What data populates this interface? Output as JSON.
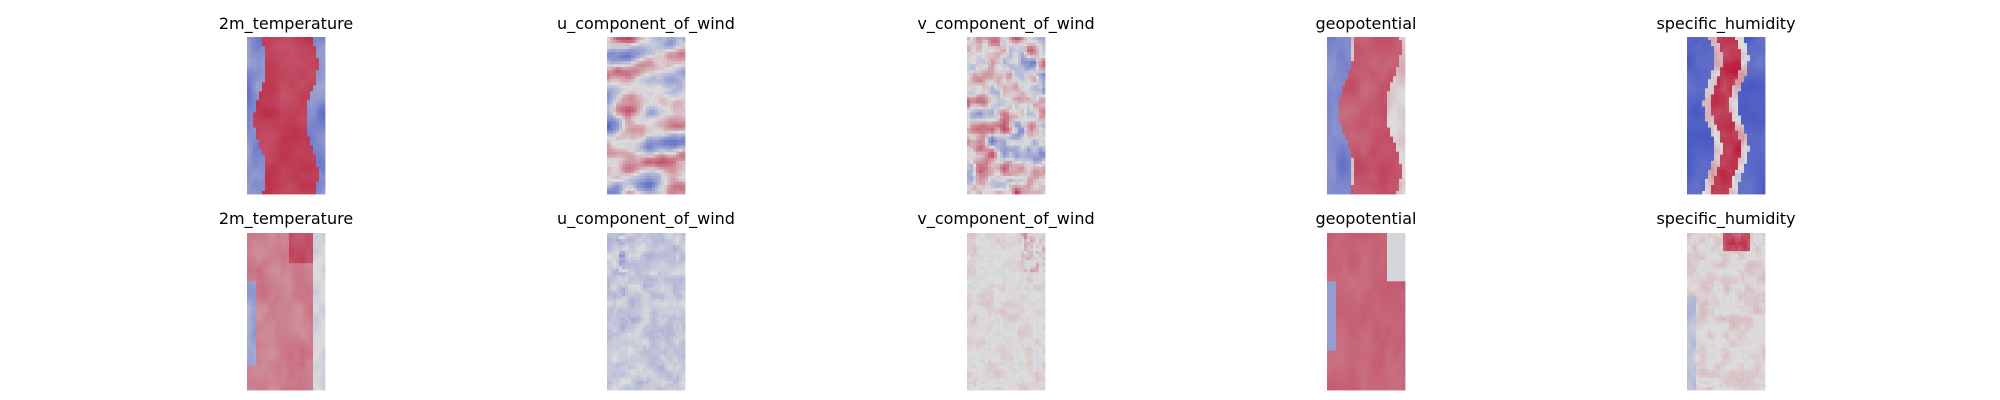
{
  "chart_data": [
    {
      "type": "heatmap",
      "rows": [
        {
          "panels": [
            {
              "title": "2m_temperature",
              "pattern": "temperature"
            },
            {
              "title": "u_component_of_wind",
              "pattern": "wind_u"
            },
            {
              "title": "v_component_of_wind",
              "pattern": "wind_v"
            },
            {
              "title": "geopotential",
              "pattern": "geopotential"
            },
            {
              "title": "specific_humidity",
              "pattern": "humidity"
            }
          ]
        },
        {
          "panels": [
            {
              "title": "2m_temperature",
              "pattern": "temperature_error"
            },
            {
              "title": "u_component_of_wind",
              "pattern": "wind_u_error"
            },
            {
              "title": "v_component_of_wind",
              "pattern": "wind_v_error"
            },
            {
              "title": "geopotential",
              "pattern": "geopotential_error"
            },
            {
              "title": "specific_humidity",
              "pattern": "humidity_error"
            }
          ]
        }
      ],
      "colormap": "coolwarm",
      "colors": {
        "low": "#3b4cc0",
        "mid": "#dddddd",
        "high": "#b40426"
      },
      "axes": "off",
      "grid": false
    }
  ]
}
